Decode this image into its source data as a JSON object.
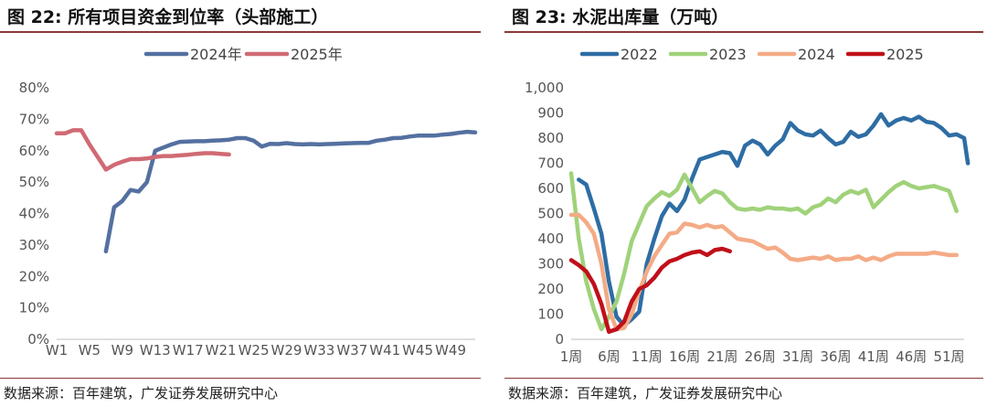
{
  "chart_data": [
    {
      "type": "line",
      "title": "图 22:  所有项目资金到位率（头部施工）",
      "source": "数据来源：百年建筑，广发证券发展研究中心",
      "x_labels": [
        "W1",
        "W5",
        "W9",
        "W13",
        "W17",
        "W21",
        "W25",
        "W29",
        "W33",
        "W37",
        "W41",
        "W45",
        "W49"
      ],
      "y_ticks": [
        "0%",
        "10%",
        "20%",
        "30%",
        "40%",
        "50%",
        "60%",
        "70%",
        "80%"
      ],
      "ylim": [
        0,
        0.8
      ],
      "x_range": [
        1,
        52
      ],
      "legend_position": "top-center",
      "series": [
        {
          "name": "2024年",
          "color": "#5470a0",
          "x": [
            7,
            8,
            9,
            10,
            11,
            12,
            13,
            14,
            15,
            16,
            17,
            18,
            19,
            20,
            21,
            22,
            23,
            24,
            25,
            26,
            27,
            28,
            29,
            30,
            31,
            32,
            33,
            34,
            35,
            36,
            37,
            38,
            39,
            40,
            41,
            42,
            43,
            44,
            45,
            46,
            47,
            48,
            49,
            50,
            51,
            52
          ],
          "values": [
            0.28,
            0.42,
            0.44,
            0.475,
            0.47,
            0.5,
            0.6,
            0.61,
            0.62,
            0.628,
            0.629,
            0.63,
            0.63,
            0.632,
            0.633,
            0.635,
            0.64,
            0.64,
            0.632,
            0.613,
            0.622,
            0.621,
            0.624,
            0.621,
            0.62,
            0.621,
            0.62,
            0.621,
            0.622,
            0.623,
            0.624,
            0.625,
            0.625,
            0.632,
            0.635,
            0.64,
            0.641,
            0.645,
            0.648,
            0.648,
            0.648,
            0.651,
            0.653,
            0.657,
            0.66,
            0.658
          ]
        },
        {
          "name": "2025年",
          "color": "#d06a74",
          "x": [
            1,
            2,
            3,
            4,
            5,
            6,
            7,
            8,
            9,
            10,
            11,
            12,
            13,
            14,
            15,
            16,
            17,
            18,
            19,
            20,
            21,
            22
          ],
          "values": [
            0.655,
            0.655,
            0.665,
            0.665,
            0.62,
            0.58,
            0.54,
            0.555,
            0.565,
            0.573,
            0.573,
            0.575,
            0.58,
            0.583,
            0.583,
            0.585,
            0.587,
            0.59,
            0.592,
            0.592,
            0.59,
            0.588
          ]
        }
      ]
    },
    {
      "type": "line",
      "title": "图 23:  水泥出库量（万吨）",
      "source": "数据来源：百年建筑，广发证券发展研究中心",
      "x_labels": [
        "1周",
        "6周",
        "11周",
        "16周",
        "21周",
        "26周",
        "31周",
        "36周",
        "41周",
        "46周",
        "51周"
      ],
      "y_ticks": [
        "0",
        "100",
        "200",
        "300",
        "400",
        "500",
        "600",
        "700",
        "800",
        "900",
        "1,000"
      ],
      "ylim": [
        0,
        1000
      ],
      "x_range": [
        1,
        53
      ],
      "legend_position": "top-center",
      "series": [
        {
          "name": "2022",
          "color": "#2e6da4",
          "x": [
            2,
            3,
            4,
            5,
            6,
            7,
            8,
            9,
            10,
            11,
            12,
            13,
            14,
            15,
            16,
            17,
            18,
            19,
            20,
            21,
            22,
            23,
            24,
            25,
            26,
            27,
            28,
            29,
            30,
            31,
            32,
            33,
            34,
            35,
            36,
            37,
            38,
            39,
            40,
            41,
            42,
            43,
            44,
            45,
            46,
            47,
            48,
            49,
            50,
            51,
            52,
            53
          ],
          "values": [
            635,
            615,
            520,
            420,
            230,
            90,
            55,
            80,
            110,
            300,
            400,
            490,
            540,
            510,
            555,
            640,
            715,
            725,
            735,
            745,
            740,
            690,
            770,
            790,
            775,
            735,
            770,
            795,
            860,
            830,
            815,
            810,
            830,
            800,
            775,
            785,
            825,
            805,
            815,
            850,
            895,
            850,
            870,
            880,
            870,
            885,
            865,
            860,
            840,
            810,
            815,
            800
          ],
          "values_tail": [
            700
          ]
        },
        {
          "name": "2023",
          "color": "#a0d27a",
          "x": [
            1,
            2,
            3,
            4,
            5,
            6,
            7,
            8,
            9,
            10,
            11,
            12,
            13,
            14,
            15,
            16,
            17,
            18,
            19,
            20,
            21,
            22,
            23,
            24,
            25,
            26,
            27,
            28,
            29,
            30,
            31,
            32,
            33,
            34,
            35,
            36,
            37,
            38,
            39,
            40,
            41,
            42,
            43,
            44,
            45,
            46,
            47,
            48,
            49,
            50,
            51,
            52
          ],
          "values": [
            660,
            400,
            230,
            120,
            40,
            90,
            150,
            260,
            390,
            460,
            530,
            560,
            585,
            570,
            595,
            655,
            600,
            545,
            570,
            590,
            580,
            545,
            520,
            515,
            520,
            515,
            525,
            520,
            520,
            515,
            520,
            500,
            525,
            535,
            560,
            545,
            575,
            590,
            580,
            595,
            525,
            555,
            585,
            610,
            625,
            610,
            600,
            605,
            610,
            600,
            590,
            510
          ]
        },
        {
          "name": "2024",
          "color": "#f4ab86",
          "x": [
            1,
            2,
            3,
            4,
            5,
            6,
            7,
            8,
            9,
            10,
            11,
            12,
            13,
            14,
            15,
            16,
            17,
            18,
            19,
            20,
            21,
            22,
            23,
            24,
            25,
            26,
            27,
            28,
            29,
            30,
            31,
            32,
            33,
            34,
            35,
            36,
            37,
            38,
            39,
            40,
            41,
            42,
            43,
            44,
            45,
            46,
            47,
            48,
            49,
            50,
            51,
            52
          ],
          "values": [
            495,
            495,
            465,
            420,
            300,
            120,
            40,
            45,
            100,
            190,
            270,
            330,
            375,
            420,
            425,
            460,
            455,
            445,
            455,
            445,
            450,
            425,
            400,
            395,
            390,
            375,
            360,
            365,
            345,
            320,
            315,
            320,
            325,
            320,
            330,
            315,
            320,
            320,
            330,
            315,
            325,
            315,
            330,
            340,
            340,
            340,
            340,
            340,
            345,
            340,
            335,
            335
          ]
        },
        {
          "name": "2025",
          "color": "#c0101a",
          "x": [
            1,
            2,
            3,
            4,
            5,
            6,
            7,
            8,
            9,
            10,
            11,
            12,
            13,
            14,
            15,
            16,
            17,
            18,
            19,
            20,
            21,
            22
          ],
          "values": [
            315,
            295,
            270,
            220,
            140,
            30,
            40,
            70,
            150,
            200,
            215,
            245,
            285,
            310,
            320,
            335,
            345,
            350,
            335,
            355,
            360,
            350
          ]
        }
      ]
    }
  ]
}
